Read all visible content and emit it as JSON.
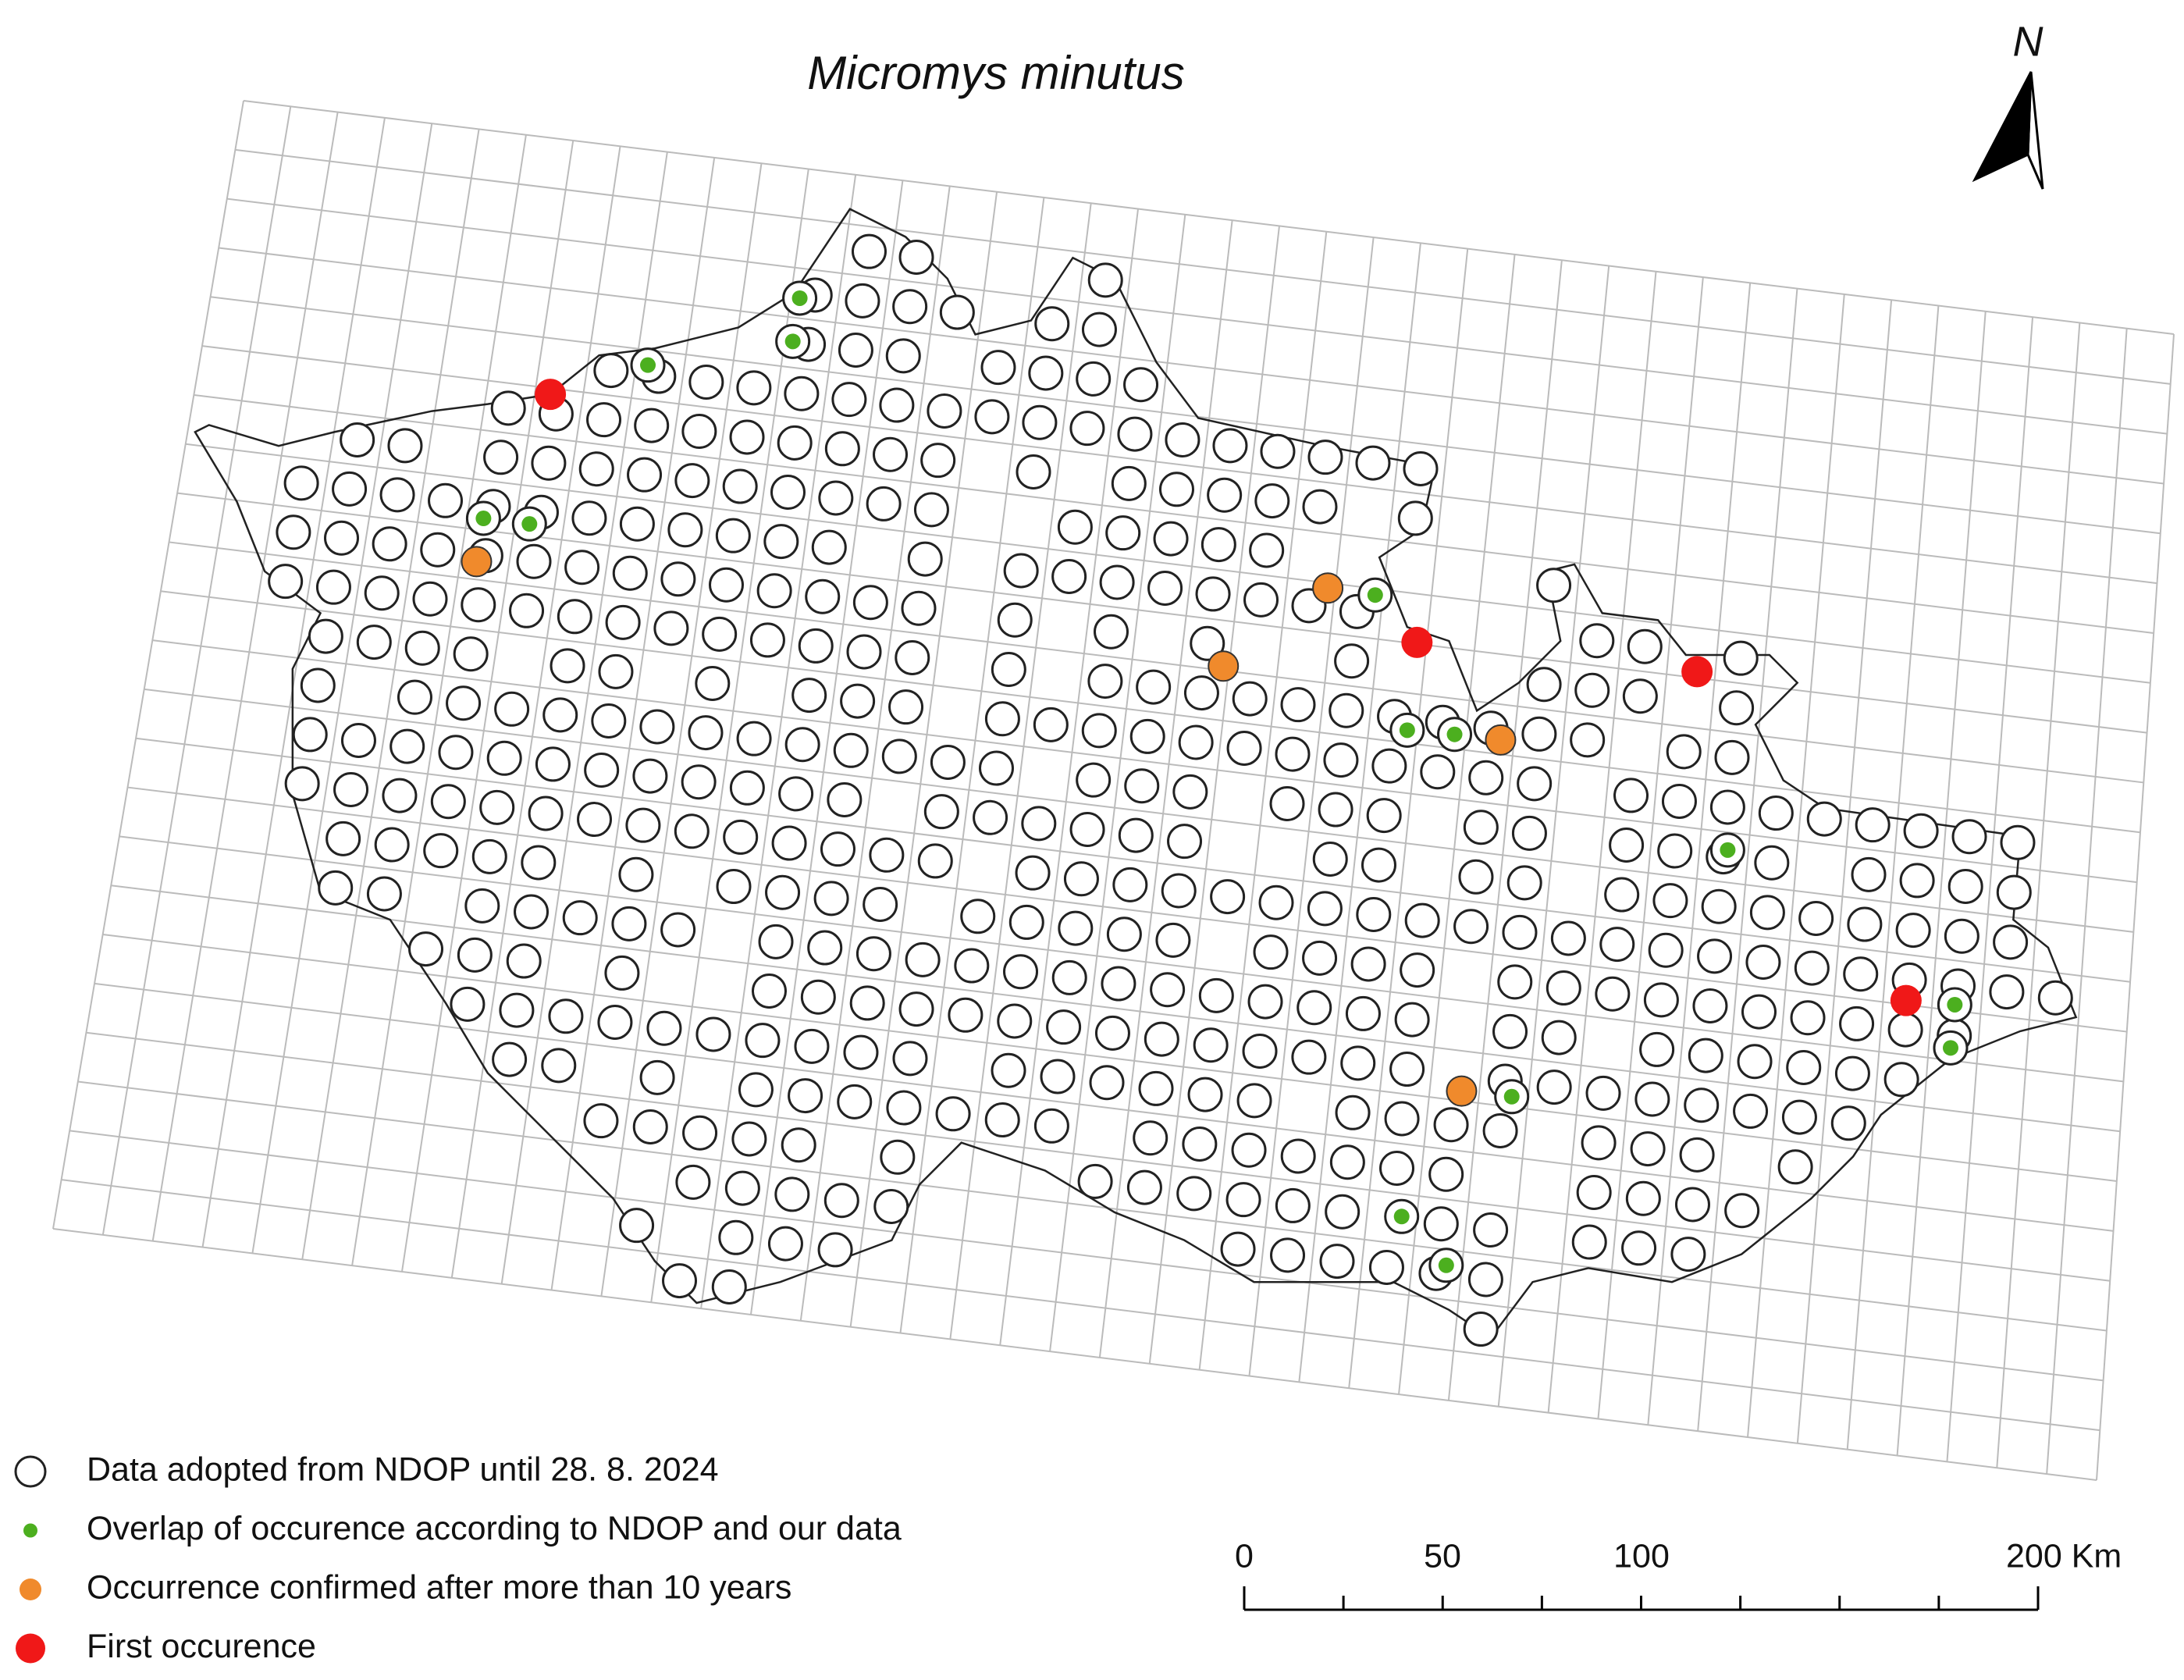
{
  "title": "Micromys minutus",
  "north": "N",
  "legend": [
    "Data adopted from NDOP until 28. 8. 2024",
    "Overlap of occurence according to NDOP and our data",
    "Occurrence confirmed after more than 10 years",
    "First occurence"
  ],
  "scale_bar": {
    "labels": [
      "0",
      "50",
      "100",
      "200 Km"
    ]
  }
}
